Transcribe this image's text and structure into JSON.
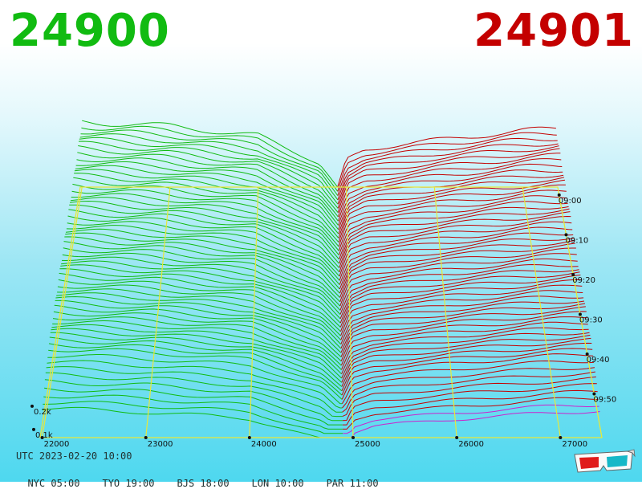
{
  "best_bid": "24900",
  "best_ask": "24901",
  "colors": {
    "bid": "#11bb11",
    "ask": "#c40000",
    "grid": "#e8e83a",
    "latest": "#cc22cc"
  },
  "footer": {
    "utc": "UTC 2023-02-20 10:00",
    "zones": [
      {
        "label": "NYC 05:00"
      },
      {
        "label": "TYO 19:00"
      },
      {
        "label": "BJS 18:00"
      },
      {
        "label": "LON 10:00"
      },
      {
        "label": "PAR 11:00"
      }
    ]
  },
  "glasses_icon": "3d-glasses-icon",
  "chart_data": {
    "type": "area",
    "title": "",
    "xlabel": "",
    "ylabel": "",
    "x_ticks": [
      22000,
      23000,
      24000,
      25000,
      26000,
      27000
    ],
    "x_range": [
      21980,
      27400
    ],
    "z_ticks": [
      "0.1k",
      "0.2k"
    ],
    "time_ticks": [
      "09:00",
      "09:10",
      "09:20",
      "09:30",
      "09:40",
      "09:50"
    ],
    "time_range": [
      "08:55",
      "10:00"
    ],
    "mid_price": 24900.5,
    "snapshots": 60,
    "grid": true,
    "series": [
      {
        "name": "24900",
        "side": "bid",
        "depth_at": [
          [
            22000,
            0.28
          ],
          [
            23000,
            0.26
          ],
          [
            24000,
            0.22
          ],
          [
            24700,
            0.1
          ],
          [
            24900,
            0
          ]
        ]
      },
      {
        "name": "24901",
        "side": "ask",
        "depth_at": [
          [
            24901,
            0
          ],
          [
            25000,
            0.12
          ],
          [
            25200,
            0.16
          ],
          [
            26000,
            0.2
          ],
          [
            27000,
            0.24
          ],
          [
            27400,
            0.25
          ]
        ]
      }
    ]
  }
}
